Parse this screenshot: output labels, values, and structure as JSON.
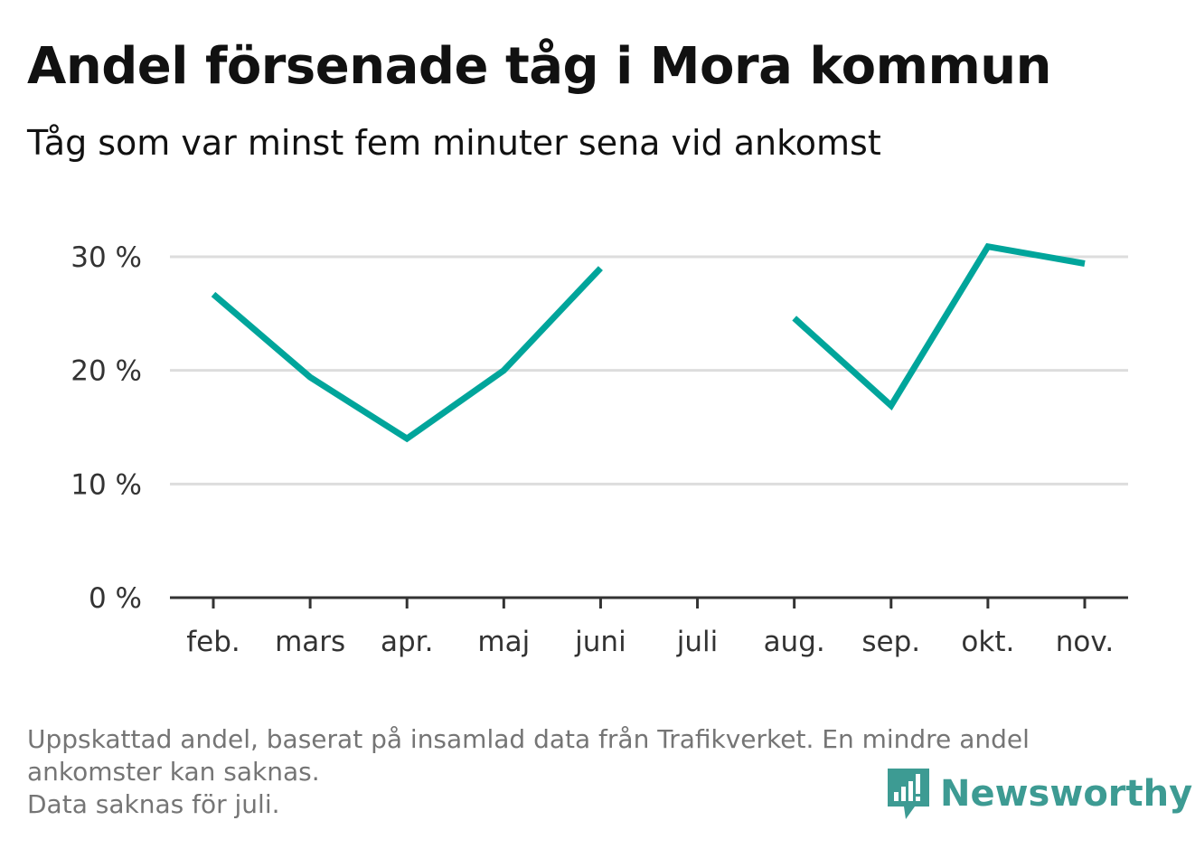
{
  "chart_data": {
    "type": "line",
    "title": "Andel försenade tåg i Mora kommun",
    "subtitle": "Tåg som var minst fem minuter sena vid ankomst",
    "categories": [
      "feb.",
      "mars",
      "apr.",
      "maj",
      "juni",
      "juli",
      "aug.",
      "sep.",
      "okt.",
      "nov."
    ],
    "series": [
      {
        "values": [
          26.7,
          19.4,
          14.0,
          20.0,
          29.0,
          null,
          24.6,
          16.9,
          30.9,
          29.4
        ],
        "color": "#00a59b"
      }
    ],
    "y_ticks": [
      {
        "value": 0,
        "label": "0 %"
      },
      {
        "value": 10,
        "label": "10 %"
      },
      {
        "value": 20,
        "label": "20 %"
      },
      {
        "value": 30,
        "label": "30 %"
      }
    ],
    "ylim": [
      0,
      30
    ],
    "grid": true,
    "axis_color": "#333333",
    "grid_color": "#dddddd"
  },
  "footnote": {
    "line1": "Uppskattad andel, baserat på insamlad data från Trafikverket. En mindre andel",
    "line2": "ankomster kan saknas.",
    "line3": "Data saknas för juli."
  },
  "brand": {
    "name": "Newsworthy",
    "icon": "newsworthy-logo-icon",
    "color": "#3d9b93"
  }
}
